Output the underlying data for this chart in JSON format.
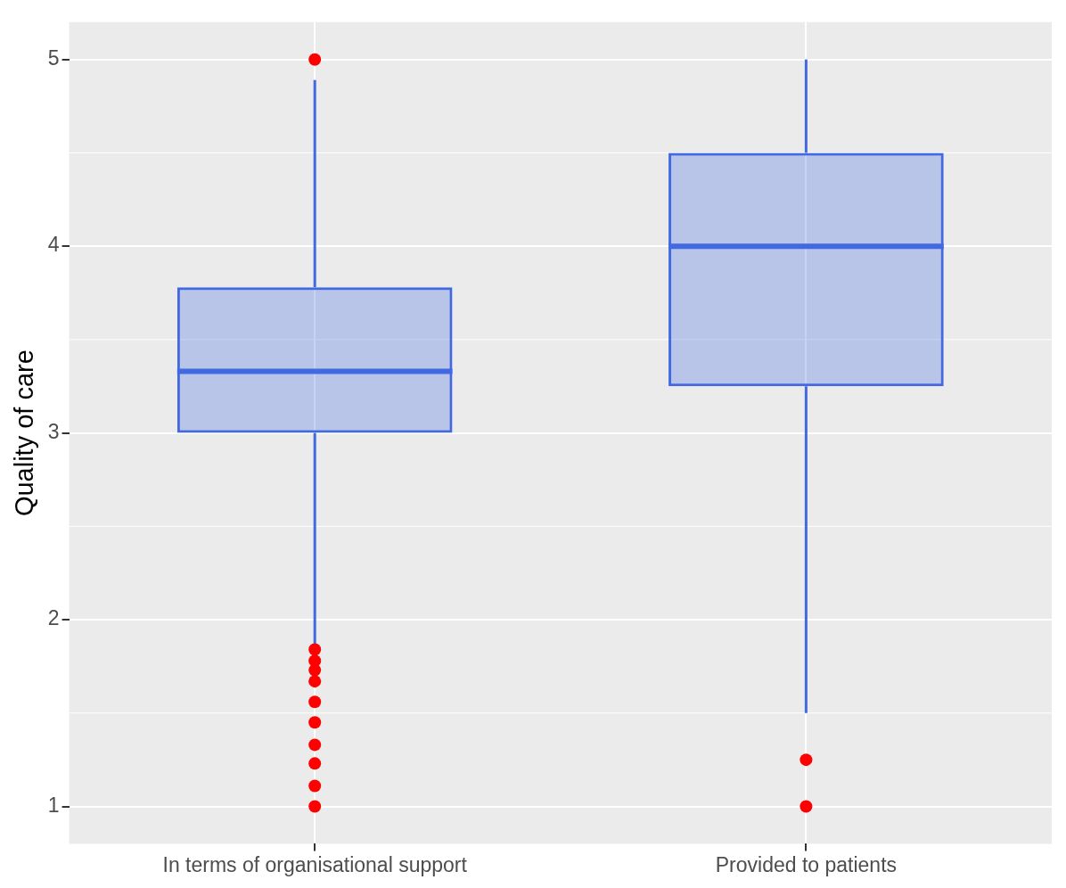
{
  "chart_data": {
    "type": "box",
    "ylabel": "Quality of care",
    "categories": [
      "In terms of organisational support",
      "Provided to patients"
    ],
    "series": [
      {
        "type": "box",
        "color": "#4169e1",
        "boxes": [
          {
            "low": 1.87,
            "q1": 3.0,
            "median": 3.33,
            "q3": 3.78,
            "high": 4.89
          },
          {
            "low": 1.5,
            "q1": 3.25,
            "median": 4.0,
            "q3": 4.5,
            "high": 5.0
          }
        ]
      },
      {
        "type": "scatter",
        "color": "#ff0000",
        "x": [
          "In terms of organisational support",
          "In terms of organisational support",
          "In terms of organisational support",
          "In terms of organisational support",
          "In terms of organisational support",
          "In terms of organisational support",
          "In terms of organisational support",
          "In terms of organisational support",
          "In terms of organisational support",
          "In terms of organisational support",
          "In terms of organisational support",
          "Provided to patients",
          "Provided to patients"
        ],
        "values": [
          5.0,
          1.84,
          1.78,
          1.73,
          1.67,
          1.56,
          1.45,
          1.33,
          1.23,
          1.11,
          1.0,
          1.25,
          1.0
        ]
      }
    ],
    "ylim": [
      0.8,
      5.2
    ],
    "yticks": [
      1,
      2,
      3,
      4,
      5
    ],
    "grid": true
  }
}
